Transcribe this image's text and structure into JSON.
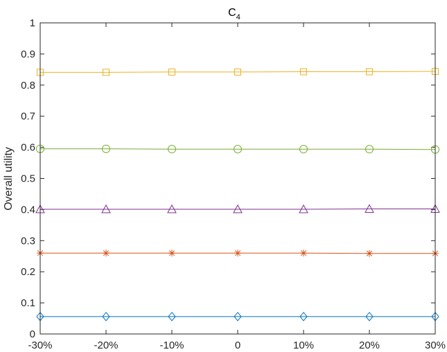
{
  "chart_data": {
    "type": "line",
    "title": "C",
    "title_subscript": "4",
    "xlabel": "",
    "ylabel": "Overall utility",
    "categories": [
      "-30%",
      "-20%",
      "-10%",
      "0",
      "10%",
      "20%",
      "30%"
    ],
    "ylim": [
      0,
      1
    ],
    "yticks": [
      "0",
      "0.1",
      "0.2",
      "0.3",
      "0.4",
      "0.5",
      "0.6",
      "0.7",
      "0.8",
      "0.9",
      "1"
    ],
    "grid": false,
    "series": [
      {
        "values": [
          0.841,
          0.841,
          0.842,
          0.842,
          0.843,
          0.843,
          0.844
        ],
        "color": "#EDB120",
        "marker": "square"
      },
      {
        "values": [
          0.595,
          0.595,
          0.594,
          0.594,
          0.594,
          0.594,
          0.593
        ],
        "color": "#77AC30",
        "marker": "circle"
      },
      {
        "values": [
          0.401,
          0.401,
          0.401,
          0.401,
          0.401,
          0.402,
          0.402
        ],
        "color": "#7E2F8E",
        "marker": "triangle"
      },
      {
        "values": [
          0.26,
          0.26,
          0.26,
          0.26,
          0.26,
          0.259,
          0.259
        ],
        "color": "#D95319",
        "marker": "asterisk"
      },
      {
        "values": [
          0.056,
          0.056,
          0.056,
          0.056,
          0.056,
          0.056,
          0.056
        ],
        "color": "#0072BD",
        "marker": "diamond"
      }
    ]
  }
}
